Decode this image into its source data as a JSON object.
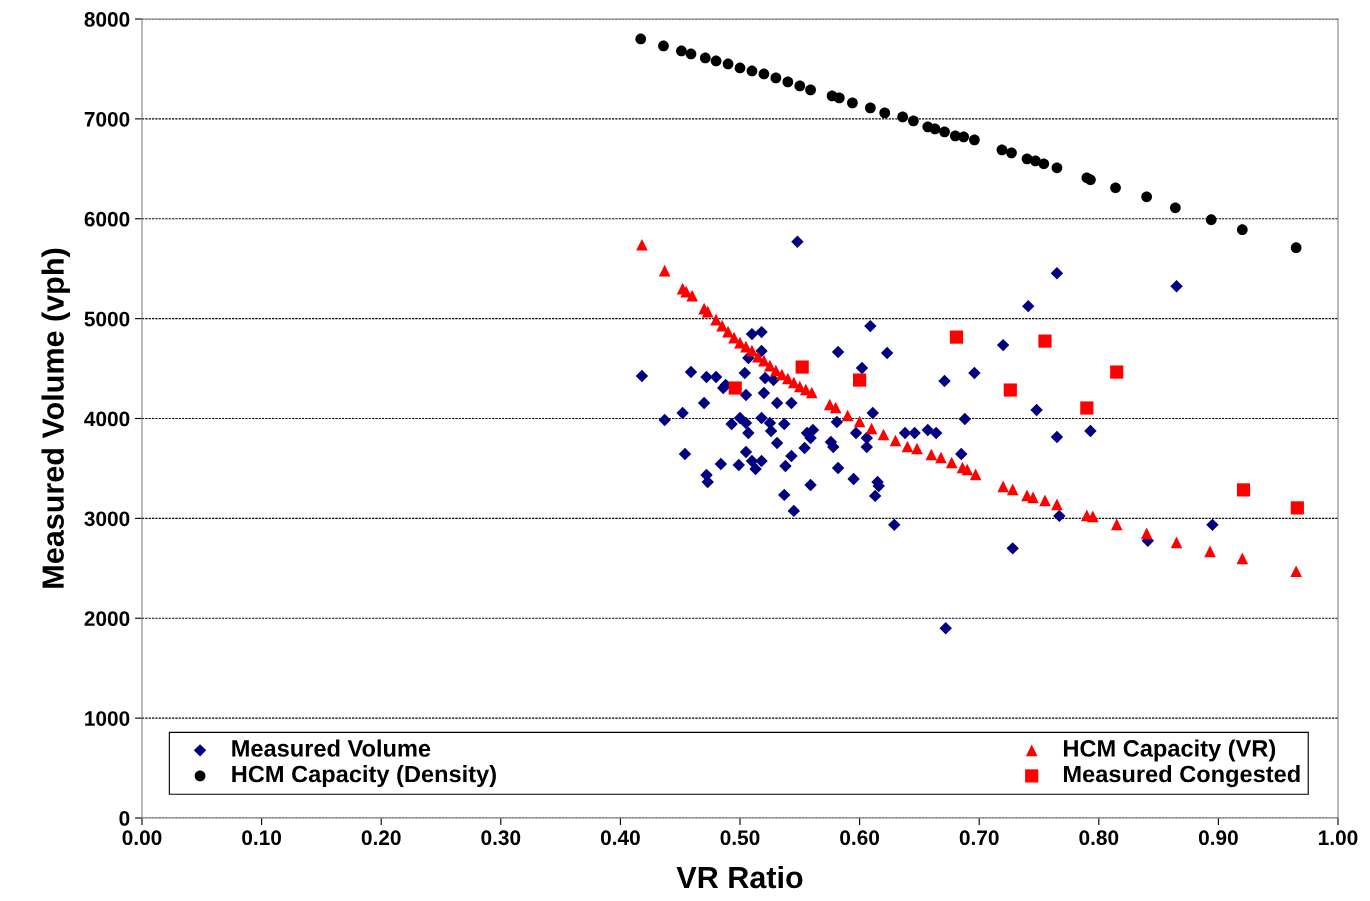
{
  "chart_data": {
    "type": "scatter",
    "xlabel": "VR Ratio",
    "ylabel": "Measured Volume (vph)",
    "xlim": [
      0,
      1
    ],
    "ylim": [
      0,
      8000
    ],
    "xticks": [
      {
        "value": 0,
        "label": "0.00"
      },
      {
        "value": 0.1,
        "label": "0.10"
      },
      {
        "value": 0.2,
        "label": "0.20"
      },
      {
        "value": 0.3,
        "label": "0.30"
      },
      {
        "value": 0.4,
        "label": "0.40"
      },
      {
        "value": 0.5,
        "label": "0.50"
      },
      {
        "value": 0.6,
        "label": "0.60"
      },
      {
        "value": 0.7,
        "label": "0.70"
      },
      {
        "value": 0.8,
        "label": "0.80"
      },
      {
        "value": 0.9,
        "label": "0.90"
      },
      {
        "value": 1,
        "label": "1.00"
      }
    ],
    "yticks": [
      0,
      1000,
      2000,
      3000,
      4000,
      5000,
      6000,
      7000,
      8000
    ],
    "grid": "y",
    "legend": "bottom",
    "series": [
      {
        "name": "Measured Volume",
        "color": "#000080",
        "marker": "diamond",
        "x": [
          0.548,
          0.418,
          0.437,
          0.452,
          0.454,
          0.459,
          0.472,
          0.48,
          0.47,
          0.472,
          0.473,
          0.484,
          0.486,
          0.488,
          0.493,
          0.499,
          0.5,
          0.505,
          0.505,
          0.507,
          0.505,
          0.51,
          0.513,
          0.51,
          0.518,
          0.518,
          0.507,
          0.504,
          0.518,
          0.518,
          0.52,
          0.521,
          0.528,
          0.525,
          0.526,
          0.531,
          0.531,
          0.537,
          0.543,
          0.543,
          0.538,
          0.537,
          0.545,
          0.554,
          0.556,
          0.559,
          0.561,
          0.559,
          0.576,
          0.578,
          0.581,
          0.582,
          0.582,
          0.595,
          0.597,
          0.602,
          0.606,
          0.606,
          0.609,
          0.611,
          0.615,
          0.616,
          0.613,
          0.623,
          0.629,
          0.638,
          0.646,
          0.657,
          0.664,
          0.671,
          0.685,
          0.688,
          0.696,
          0.672,
          0.741,
          0.765,
          0.72,
          0.748,
          0.765,
          0.793,
          0.767,
          0.728,
          0.841,
          0.895,
          0.865
        ],
        "values": [
          5770,
          4425,
          3985,
          4055,
          3645,
          4465,
          4415,
          4415,
          4155,
          3435,
          3365,
          3545,
          4305,
          4335,
          3945,
          3535,
          4005,
          4235,
          3955,
          3855,
          3665,
          3575,
          3495,
          4845,
          4865,
          4675,
          4605,
          4455,
          4005,
          3575,
          4255,
          4405,
          4385,
          3955,
          3875,
          4155,
          3755,
          3945,
          4155,
          3625,
          3525,
          3235,
          3075,
          3705,
          3855,
          3805,
          3885,
          3335,
          3765,
          3715,
          3965,
          4665,
          3505,
          3395,
          3855,
          4505,
          3805,
          3715,
          4925,
          4055,
          3365,
          3325,
          3225,
          4655,
          2935,
          3855,
          3855,
          3885,
          3855,
          4375,
          3645,
          3995,
          4455,
          1900,
          5125,
          5455,
          4735,
          4085,
          3815,
          3875,
          3025,
          2700,
          2775,
          2935,
          5325
        ]
      },
      {
        "name": "HCM Capacity (VR)",
        "color": "#ff0000",
        "marker": "triangle",
        "x": [
          0.418,
          0.437,
          0.452,
          0.455,
          0.46,
          0.47,
          0.473,
          0.48,
          0.485,
          0.49,
          0.495,
          0.5,
          0.505,
          0.51,
          0.515,
          0.52,
          0.525,
          0.53,
          0.535,
          0.54,
          0.545,
          0.55,
          0.555,
          0.56,
          0.575,
          0.58,
          0.59,
          0.6,
          0.61,
          0.62,
          0.63,
          0.64,
          0.648,
          0.66,
          0.668,
          0.677,
          0.686,
          0.69,
          0.697,
          0.72,
          0.728,
          0.74,
          0.745,
          0.755,
          0.765,
          0.79,
          0.795,
          0.815,
          0.84,
          0.865,
          0.893,
          0.92,
          0.965
        ],
        "values": [
          5740,
          5480,
          5300,
          5270,
          5230,
          5100,
          5070,
          4990,
          4930,
          4870,
          4810,
          4760,
          4720,
          4680,
          4620,
          4580,
          4530,
          4480,
          4440,
          4400,
          4360,
          4320,
          4290,
          4260,
          4140,
          4110,
          4030,
          3970,
          3900,
          3840,
          3780,
          3720,
          3700,
          3640,
          3610,
          3560,
          3510,
          3490,
          3440,
          3320,
          3290,
          3230,
          3210,
          3180,
          3140,
          3030,
          3020,
          2940,
          2850,
          2760,
          2670,
          2600,
          2470
        ]
      },
      {
        "name": "HCM Capacity (Density)",
        "color": "#000000",
        "marker": "circle",
        "x": [
          0.417,
          0.436,
          0.451,
          0.459,
          0.471,
          0.48,
          0.49,
          0.5,
          0.51,
          0.52,
          0.53,
          0.54,
          0.55,
          0.559,
          0.577,
          0.583,
          0.594,
          0.609,
          0.621,
          0.636,
          0.645,
          0.657,
          0.663,
          0.671,
          0.68,
          0.687,
          0.696,
          0.719,
          0.727,
          0.74,
          0.747,
          0.754,
          0.765,
          0.79,
          0.793,
          0.814,
          0.84,
          0.864,
          0.894,
          0.92,
          0.965
        ],
        "values": [
          7800,
          7730,
          7680,
          7650,
          7610,
          7580,
          7550,
          7510,
          7480,
          7450,
          7410,
          7370,
          7330,
          7290,
          7230,
          7210,
          7160,
          7110,
          7060,
          7020,
          6980,
          6920,
          6900,
          6870,
          6830,
          6820,
          6790,
          6690,
          6660,
          6600,
          6580,
          6550,
          6510,
          6410,
          6390,
          6310,
          6220,
          6110,
          5990,
          5890,
          5710
        ]
      },
      {
        "name": "Measured Congested",
        "color": "#ff0000",
        "marker": "square",
        "x": [
          0.496,
          0.552,
          0.6,
          0.681,
          0.755,
          0.726,
          0.79,
          0.815,
          0.921,
          0.966
        ],
        "values": [
          4305,
          4515,
          4385,
          4815,
          4775,
          4285,
          4105,
          4465,
          3285,
          3105
        ]
      }
    ]
  }
}
